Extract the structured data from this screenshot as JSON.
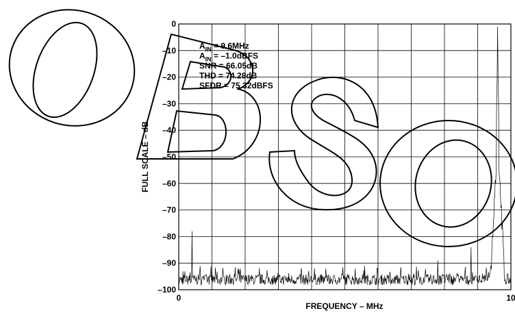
{
  "chart_data": {
    "type": "line",
    "xlabel": "FREQUENCY – MHz",
    "ylabel": "FULL SCALE – dB",
    "xlim": [
      0,
      10
    ],
    "ylim": [
      -100,
      0
    ],
    "x_tick_labels": [
      "0",
      "10"
    ],
    "y_ticks": [
      0,
      -10,
      -20,
      -30,
      -40,
      -50,
      -60,
      -70,
      -80,
      -90,
      -100
    ],
    "y_tick_labels": [
      "0",
      "–10",
      "–20",
      "–30",
      "–40",
      "–50",
      "–60",
      "–70",
      "–80",
      "–90",
      "–100"
    ],
    "grid": true,
    "x_grid_divisions": 10,
    "annotations": [
      {
        "main": "A",
        "sub": "IN",
        "rest": " = 9.6MHz"
      },
      {
        "main": "A",
        "sub": "IN",
        "rest": " = –1.0dBFS"
      },
      {
        "main": "SNR = 66.05dB",
        "sub": "",
        "rest": ""
      },
      {
        "main": "THD = 74.28dB",
        "sub": "",
        "rest": ""
      },
      {
        "main": "SFDR = 75.32dBFS",
        "sub": "",
        "rest": ""
      }
    ],
    "series": [
      {
        "noise_floor_db": -97,
        "peaks": [
          {
            "x": 9.6,
            "y": -1
          },
          {
            "x": 0.4,
            "y": -78
          },
          {
            "x": 8.8,
            "y": -84
          },
          {
            "x": 7.8,
            "y": -89
          },
          {
            "x": 5.6,
            "y": -91
          },
          {
            "x": 3.7,
            "y": -93
          }
        ]
      }
    ],
    "color": "#000000"
  },
  "watermark": {
    "text": "OBSOLETE"
  }
}
